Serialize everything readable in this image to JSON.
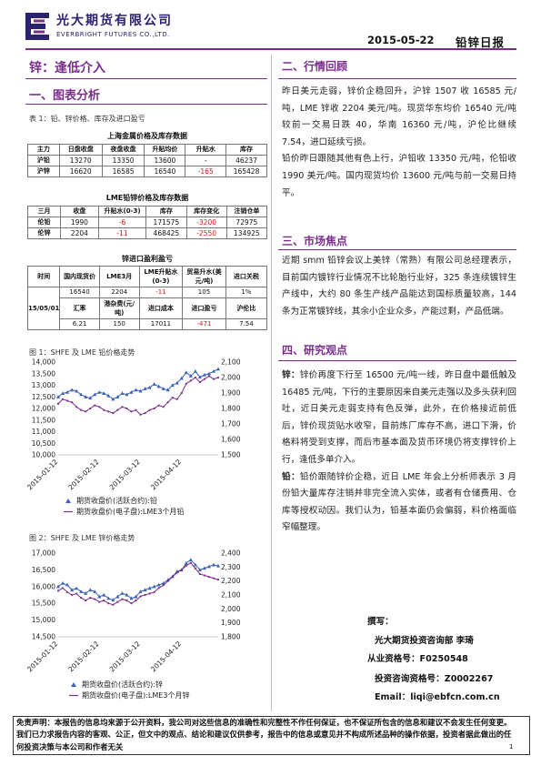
{
  "header": {
    "company_cn": "光大期货有限公司",
    "company_en": "EVERBRIGHT FUTURES CO.,LTD.",
    "date": "2015-05-22",
    "report_type": "铅锌日报"
  },
  "left": {
    "title": "锌：逢低介入",
    "section1": "一、图表分析",
    "table_caption": "表 1：铅、锌价格、库存及进口盈亏",
    "table_shfe": {
      "title": "上海金属价格及库存数据",
      "headers": [
        "主力",
        "日盘收盘",
        "夜盘收盘",
        "升贴均价",
        "升贴水",
        "库存"
      ],
      "rows": [
        [
          "沪铅",
          "13270",
          "13350",
          "13600",
          "-",
          "46237"
        ],
        [
          "沪锌",
          "16620",
          "16585",
          "16540",
          "-165",
          "165428"
        ]
      ]
    },
    "table_lme": {
      "title": "LME铅锌价格及库存数据",
      "headers": [
        "三月",
        "收盘",
        "升贴水(0-3)",
        "库存",
        "库存变化",
        "注销仓单"
      ],
      "rows": [
        [
          "伦铅",
          "1990",
          "-6",
          "171575",
          "-3200",
          "72975"
        ],
        [
          "伦锌",
          "2204",
          "-11",
          "468425",
          "-2550",
          "134925"
        ]
      ]
    },
    "table_import": {
      "title": "锌进口盈利盈亏",
      "headers1": [
        "时间",
        "国内现货价",
        "LME3月",
        "LME升贴水(0-3)",
        "贸易升水(美元/吨)",
        "进口关税"
      ],
      "row1": [
        "16540",
        "2204",
        "-11",
        "105",
        "1%"
      ],
      "headers2": [
        "汇率",
        "港杂费(元/吨)",
        "进口成本",
        "进口盈亏",
        "沪伦比"
      ],
      "row2": [
        "6.21",
        "150",
        "17011",
        "-471",
        "7.54"
      ],
      "date": "15/05/01"
    },
    "fig1": {
      "caption": "图 1：SHFE 及 LME 铅价格走势",
      "legend": [
        "期货收盘价(活跃合约):铅",
        "期货收盘价(电子盘):LME3个月铅"
      ]
    },
    "fig2": {
      "caption": "图 2：SHFE 及 LME 锌价格走势",
      "legend": [
        "期货收盘价(活跃合约):锌",
        "期货收盘价(电子盘):LME3个月锌"
      ]
    }
  },
  "chart_data": [
    {
      "type": "line",
      "x_ticks": [
        "2015-01-12",
        "2015-02-12",
        "2015-03-12",
        "2015-04-12"
      ],
      "y_left_ticks": [
        "14,000",
        "13,500",
        "13,000",
        "12,500",
        "12,000",
        "11,500",
        "11,000",
        "10,500",
        "10,000"
      ],
      "y_right_ticks": [
        "2,100",
        "2,000",
        "1,900",
        "1,800",
        "1,700",
        "1,600",
        "1,500"
      ],
      "ylim_left": [
        10000,
        14000
      ],
      "ylim_right": [
        1500,
        2100
      ],
      "series": [
        {
          "name": "期货收盘价(活跃合约):铅",
          "color": "#3a62b8",
          "axis": "left",
          "values": [
            12500,
            12650,
            12700,
            12800,
            12750,
            12600,
            12500,
            12450,
            12600,
            12700,
            12650,
            12550,
            12400,
            12500,
            12650,
            12600,
            12700,
            12800,
            12750,
            12850,
            12900,
            13050,
            12950,
            12850,
            12800,
            13000,
            13100,
            13300,
            13550,
            13400,
            13600,
            13350,
            13450,
            13500,
            13600,
            13700
          ]
        },
        {
          "name": "期货收盘价(电子盘):LME3个月铅",
          "color": "#7b2d8b",
          "axis": "right",
          "values": [
            1830,
            1860,
            1850,
            1840,
            1810,
            1790,
            1780,
            1800,
            1820,
            1810,
            1790,
            1780,
            1770,
            1790,
            1810,
            1800,
            1780,
            1790,
            1760,
            1770,
            1790,
            1800,
            1820,
            1810,
            1840,
            1870,
            1860,
            1900,
            1960,
            1980,
            2000,
            1970,
            1990,
            2010,
            1990,
            2000
          ]
        }
      ]
    },
    {
      "type": "line",
      "x_ticks": [
        "2015-01-12",
        "2015-02-12",
        "2015-03-12",
        "2015-04-12"
      ],
      "y_left_ticks": [
        "17,000",
        "16,500",
        "16,000",
        "15,500",
        "15,000",
        "14,500"
      ],
      "y_right_ticks": [
        "2,400",
        "2,300",
        "2,200",
        "2,100",
        "2,000",
        "1,900",
        "1,800"
      ],
      "ylim_left": [
        14500,
        17000
      ],
      "ylim_right": [
        1800,
        2400
      ],
      "series": [
        {
          "name": "期货收盘价(活跃合约):锌",
          "color": "#3a62b8",
          "axis": "left",
          "values": [
            16000,
            16100,
            16050,
            15900,
            15950,
            15850,
            15800,
            15900,
            15850,
            15700,
            15750,
            15650,
            15600,
            15700,
            15800,
            15750,
            15650,
            15700,
            15850,
            15900,
            15950,
            16000,
            16050,
            16100,
            16200,
            16300,
            16450,
            16500,
            16700,
            16800,
            16650,
            16500,
            16550,
            16600,
            16650,
            16620
          ]
        },
        {
          "name": "期货收盘价(电子盘):LME3个月锌",
          "color": "#7b2d8b",
          "axis": "right",
          "values": [
            2130,
            2150,
            2120,
            2100,
            2110,
            2080,
            2060,
            2080,
            2070,
            2050,
            2060,
            2040,
            2030,
            2050,
            2070,
            2060,
            2040,
            2060,
            2090,
            2100,
            2110,
            2120,
            2150,
            2170,
            2200,
            2230,
            2260,
            2280,
            2310,
            2330,
            2290,
            2250,
            2240,
            2230,
            2220,
            2210
          ]
        }
      ]
    }
  ],
  "right": {
    "section2": "二、行情回顾",
    "para2a": "昨日美元走弱，锌价企稳回升，沪锌 1507 收 16585 元/吨，LME 锌收 2204 美元/吨。现货华东均价 16540 元/吨较前一交易日跌 40，华南 16360 元/吨，沪伦比继续 7.54，进口延续亏损。",
    "para2b": "铅价昨日跟随其他有色上行，沪铅收 13350 元/吨，伦铅收 1990 美元/吨。国内现货均价 13600 元/吨与前一交易日持平。",
    "section3": "三、市场焦点",
    "para3": "近期 smm 铅锌会议上美锌（常熟）有限公司总经理表示，目前国内镀锌行业情况不比轮胎行业好，325 条连续镀锌生产线中，大约 80 条生产线产品能达到国标质量较高，144 条为正常镀锌线，其余小企业众多，产能过剩，产品低端。",
    "section4": "四、研究观点",
    "para4a_lead": "锌：",
    "para4a": "锌价再度下行至 16500 元/吨一线，昨日盘中最低触及 16485 元/吨，下行的主要原因来自美元走强以及多头获利回吐，近日美元走弱支持有色反弹，此外，在价格接近前低后，锌价现货贴水收窄，目前炼厂库存不高，进口下滑，价格料将受到支撑，而后市基本面及货币环境仍将支撑锌价上行，逢低多单介入。",
    "para4b_lead": "铅：",
    "para4b": "铅价跟随锌价企稳，近日 LME 年会上分析师表示 3 月份铅大量库存注销并非完全流入实体，或者有仓储费用、仓库等授权动因。我们认为，铅基本面仍会偏弱，料价格面临窄幅整理。",
    "author_title": "撰写：",
    "author_org": "光大期货投资咨询部   李琦",
    "license1": "从业资格号：F0250548",
    "license2": "投资咨询资格号：Z0002267",
    "email": "Email：liqi@ebfcn.com.cn"
  },
  "footer": {
    "disclaimer": "免责声明：本报告的信息均来源于公开资料，我公司对这些信息的准确性和完整性不作任何保证，也不保证所包含的信息和建议不会发生任何变更。我们已力求报告内容的客观、公正，但文中的观点、结论和建议仅供参考，报告中的信息或意见并不构成所述品种的操作依据，投资者据此做出的任何投资决策与本公司和作者无关",
    "page": "1"
  },
  "colors": {
    "brand": "#7b2d8b",
    "header_text": "#2b2270",
    "negative": "#d11a1a"
  }
}
